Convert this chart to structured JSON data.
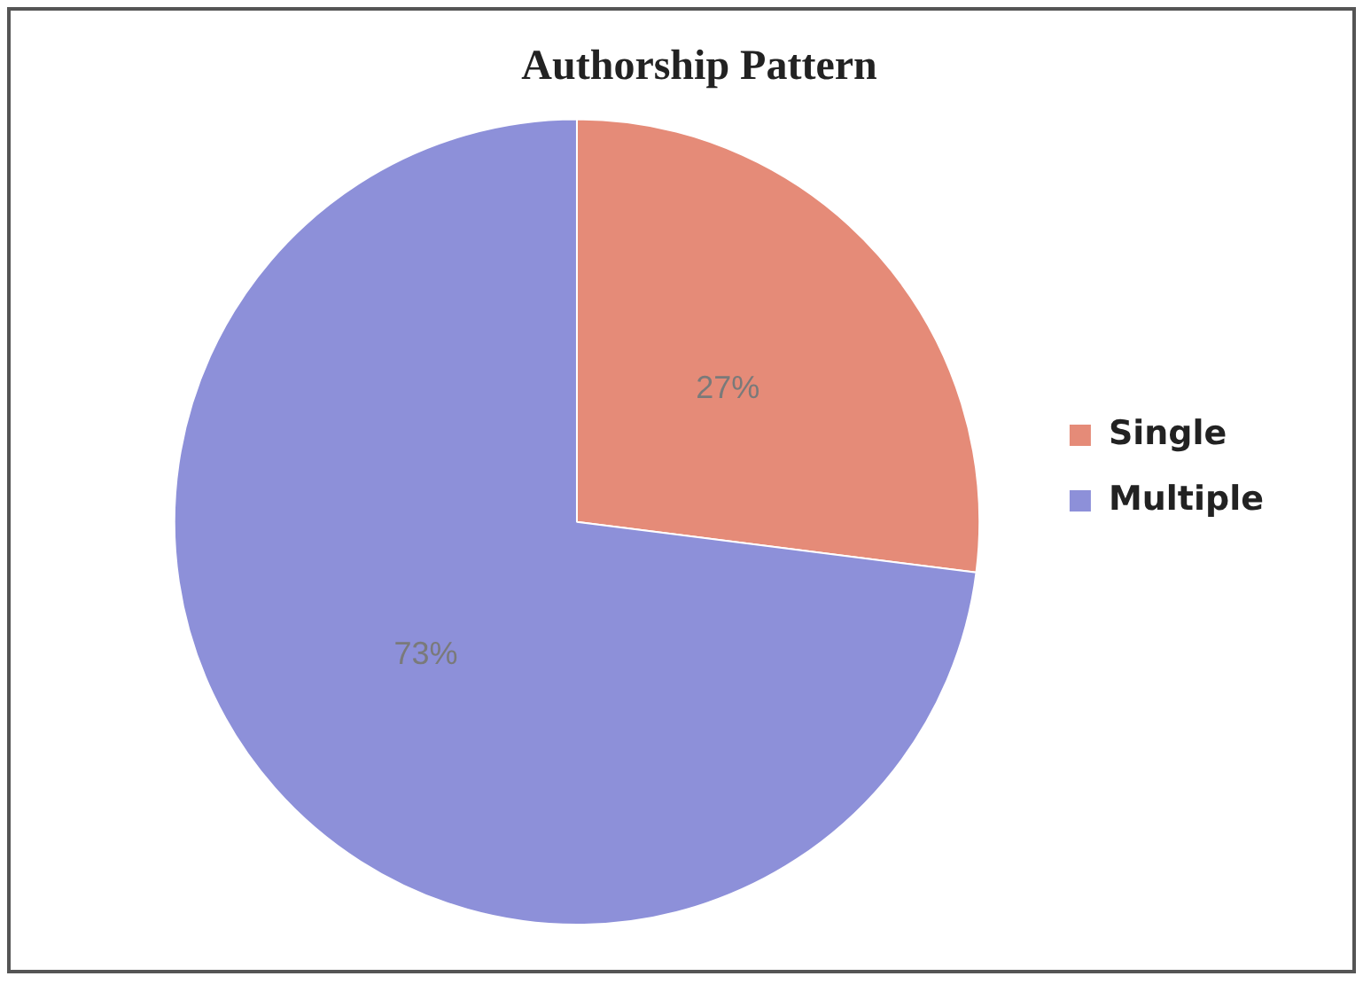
{
  "chart_data": {
    "type": "pie",
    "title": "Authorship Pattern",
    "categories": [
      "Single",
      "Multiple"
    ],
    "values": [
      27,
      73
    ],
    "colors": [
      "#e58b78",
      "#8d90d9"
    ],
    "value_labels": [
      "27%",
      "73%"
    ],
    "legend": "right"
  }
}
